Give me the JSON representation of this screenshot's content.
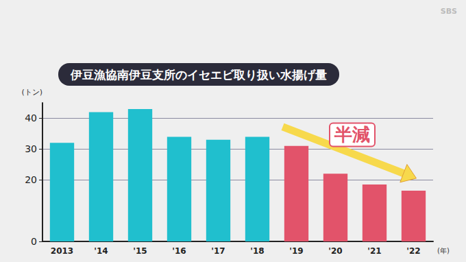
{
  "chart_data": {
    "type": "bar",
    "title": "伊豆漁協南伊豆支所のイセエビ取り扱い水揚げ量",
    "source": "SBS",
    "ylabel": "(トン)",
    "xlabel": "(年)",
    "categories": [
      "2013",
      "'14",
      "'15",
      "'16",
      "'17",
      "'18",
      "'19",
      "'20",
      "'21",
      "'22"
    ],
    "values": [
      32,
      42,
      43,
      34,
      33,
      34,
      31,
      22,
      18.5,
      16.5
    ],
    "colors": [
      "#20bfce",
      "#20bfce",
      "#20bfce",
      "#20bfce",
      "#20bfce",
      "#20bfce",
      "#e2536a",
      "#e2536a",
      "#e2536a",
      "#e2536a"
    ],
    "annotation": "半減",
    "ylim": [
      0,
      45
    ],
    "yticks": [
      0,
      20,
      30,
      40
    ],
    "grid": true
  }
}
